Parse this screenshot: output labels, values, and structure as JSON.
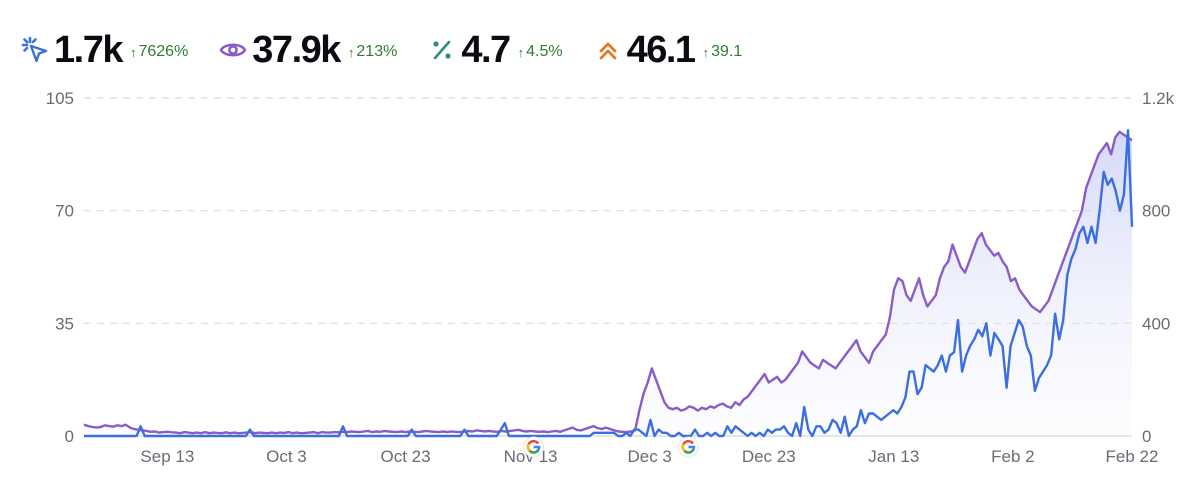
{
  "stats": [
    {
      "value": "1.7k",
      "change": "7626%",
      "icon": "cursor-click-icon",
      "color": "#3b6fe0"
    },
    {
      "value": "37.9k",
      "change": "213%",
      "icon": "eye-icon",
      "color": "#8a5cc7"
    },
    {
      "value": "4.7",
      "change": "4.5%",
      "icon": "percent-icon",
      "color": "#2f8f7f"
    },
    {
      "value": "46.1",
      "change": "39.1",
      "icon": "chevrons-up-icon",
      "color": "#e07a2b"
    }
  ],
  "change_arrow": "↑",
  "chart_data": {
    "type": "line",
    "x_range": [
      "Aug 30",
      "Feb 22"
    ],
    "x_ticks": [
      "Sep 13",
      "Oct 3",
      "Oct 23",
      "Nov 13",
      "Dec 3",
      "Dec 23",
      "Jan 13",
      "Feb 2",
      "Feb 22"
    ],
    "y_left": {
      "ticks": [
        "0",
        "35",
        "70",
        "105"
      ],
      "range": [
        0,
        105
      ]
    },
    "y_right": {
      "ticks": [
        "0",
        "400",
        "800",
        "1.2k"
      ],
      "range": [
        0,
        1200
      ]
    },
    "grid": "horizontal dashed",
    "annotations": [
      {
        "icon": "google-icon",
        "date": "Nov 13"
      },
      {
        "icon": "google-icon",
        "date": "Dec 9"
      }
    ],
    "series": [
      {
        "axis": "left",
        "color": "#3b6fe0",
        "values": [
          0,
          0,
          0,
          0,
          0,
          0,
          0,
          0,
          0,
          0,
          0,
          0,
          0,
          0,
          3,
          0,
          0,
          0,
          0,
          0,
          0,
          0,
          0,
          0,
          0,
          0,
          0,
          0,
          0,
          0,
          0,
          0,
          0,
          0,
          0,
          0,
          0,
          0,
          0,
          0,
          0,
          2,
          0,
          0,
          0,
          0,
          0,
          0,
          0,
          0,
          0,
          0,
          0,
          0,
          0,
          0,
          0,
          0,
          0,
          0,
          0,
          0,
          0,
          0,
          3,
          0,
          0,
          0,
          0,
          0,
          0,
          0,
          0,
          0,
          0,
          0,
          0,
          0,
          0,
          0,
          0,
          2,
          0,
          0,
          0,
          0,
          0,
          0,
          0,
          0,
          0,
          0,
          0,
          0,
          2,
          0,
          0,
          0,
          0,
          0,
          0,
          0,
          0,
          2,
          4,
          0,
          0,
          0,
          0,
          0,
          0,
          0,
          0,
          0,
          0,
          0,
          0,
          0,
          0,
          0,
          0,
          0,
          0,
          0,
          0,
          0,
          1,
          1,
          1,
          1,
          1,
          1,
          0,
          0,
          1,
          0,
          2,
          2,
          1,
          0,
          5,
          0,
          2,
          1,
          1,
          0,
          0,
          1,
          0,
          0,
          0,
          2,
          0,
          0,
          1,
          0,
          1,
          0,
          0,
          3,
          1,
          3,
          2,
          1,
          0,
          1,
          0,
          1,
          0,
          2,
          1,
          2,
          2,
          3,
          1,
          0,
          4,
          0,
          9,
          2,
          0,
          3,
          3,
          1,
          2,
          5,
          4,
          1,
          6,
          0,
          2,
          3,
          8,
          4,
          7,
          7,
          6,
          5,
          6,
          7,
          8,
          7,
          9,
          12,
          20,
          20,
          13,
          15,
          22,
          21,
          20,
          22,
          25,
          20,
          25,
          26,
          36,
          20,
          25,
          28,
          30,
          33,
          31,
          35,
          25,
          32,
          30,
          28,
          15,
          28,
          32,
          36,
          34,
          28,
          25,
          14,
          18,
          20,
          22,
          25,
          38,
          30,
          36,
          50,
          55,
          58,
          63,
          65,
          60,
          65,
          60,
          70,
          82,
          78,
          80,
          76,
          70,
          75,
          95,
          65
        ]
      },
      {
        "axis": "right",
        "color": "#8a5cc7",
        "values": [
          40,
          35,
          32,
          30,
          32,
          38,
          35,
          33,
          38,
          35,
          40,
          30,
          25,
          22,
          20,
          18,
          15,
          16,
          12,
          14,
          15,
          13,
          12,
          10,
          14,
          12,
          10,
          12,
          10,
          14,
          10,
          12,
          11,
          10,
          13,
          10,
          12,
          10,
          11,
          12,
          14,
          10,
          12,
          11,
          10,
          12,
          10,
          12,
          11,
          14,
          10,
          12,
          10,
          11,
          12,
          14,
          10,
          14,
          12,
          12,
          14,
          13,
          15,
          14,
          16,
          15,
          14,
          16,
          18,
          14,
          16,
          15,
          18,
          16,
          15,
          14,
          16,
          14,
          16,
          15,
          14,
          16,
          18,
          16,
          15,
          14,
          16,
          14,
          16,
          15,
          14,
          16,
          18,
          16,
          20,
          18,
          16,
          18,
          16,
          15,
          18,
          16,
          18,
          20,
          22,
          18,
          16,
          18,
          16,
          15,
          16,
          14,
          16,
          18,
          15,
          20,
          25,
          30,
          22,
          20,
          25,
          30,
          35,
          28,
          25,
          30,
          25,
          20,
          16,
          15,
          14,
          16,
          20,
          90,
          150,
          190,
          240,
          200,
          160,
          120,
          100,
          95,
          100,
          90,
          95,
          105,
          100,
          90,
          100,
          95,
          105,
          100,
          110,
          115,
          105,
          100,
          120,
          110,
          130,
          140,
          160,
          180,
          200,
          220,
          190,
          200,
          210,
          190,
          200,
          220,
          240,
          260,
          300,
          280,
          260,
          250,
          240,
          270,
          260,
          250,
          240,
          260,
          280,
          300,
          320,
          340,
          300,
          280,
          260,
          300,
          320,
          340,
          360,
          420,
          520,
          560,
          550,
          500,
          480,
          520,
          560,
          500,
          460,
          480,
          500,
          560,
          600,
          620,
          680,
          640,
          600,
          580,
          620,
          660,
          700,
          720,
          680,
          660,
          640,
          650,
          620,
          600,
          550,
          560,
          520,
          500,
          480,
          460,
          450,
          440,
          460,
          480,
          520,
          560,
          600,
          640,
          680,
          720,
          760,
          800,
          880,
          920,
          960,
          1000,
          1020,
          1040,
          1000,
          1060,
          1080,
          1070,
          1060,
          1050
        ]
      }
    ]
  }
}
